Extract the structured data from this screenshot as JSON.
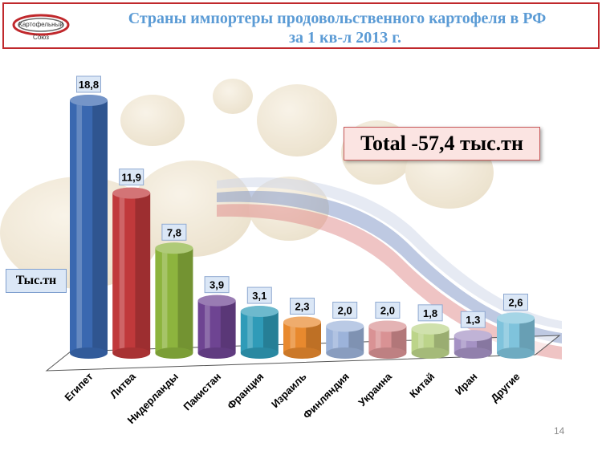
{
  "header": {
    "title_line1": "Страны импортеры продовольственного картофеля в РФ",
    "title_line2": "за 1 кв-л 2013 г."
  },
  "logo": {
    "text1": "Картофельный",
    "text2": "Союз"
  },
  "unit_label": "Тыс.тн",
  "total_label": "Total -57,4 тыс.тн",
  "page_number": "14",
  "colors": {
    "title": "#5b9bd5",
    "header_border": "#c0282c"
  },
  "chart_data": {
    "type": "bar",
    "categories": [
      "Египет",
      "Литва",
      "Нидерланды",
      "Пакистан",
      "Франция",
      "Израиль",
      "Финляндия",
      "Украина",
      "Китай",
      "Иран",
      "Другие"
    ],
    "values": [
      18.8,
      11.9,
      7.8,
      3.9,
      3.1,
      2.3,
      2.0,
      2.0,
      1.8,
      1.3,
      2.6
    ],
    "data_labels": [
      "18,8",
      "11,9",
      "7,8",
      "3,9",
      "3,1",
      "2,3",
      "2,0",
      "2,0",
      "1,8",
      "1,3",
      "2,6"
    ],
    "colors": [
      "#3a68b0",
      "#c0393b",
      "#8db43e",
      "#6e4492",
      "#2f9bb8",
      "#e8892e",
      "#9cb3da",
      "#d99294",
      "#bcd48a",
      "#a592c4",
      "#7fc3dc"
    ],
    "ylim": [
      0,
      18.8
    ],
    "grid": false,
    "legend": "none"
  }
}
